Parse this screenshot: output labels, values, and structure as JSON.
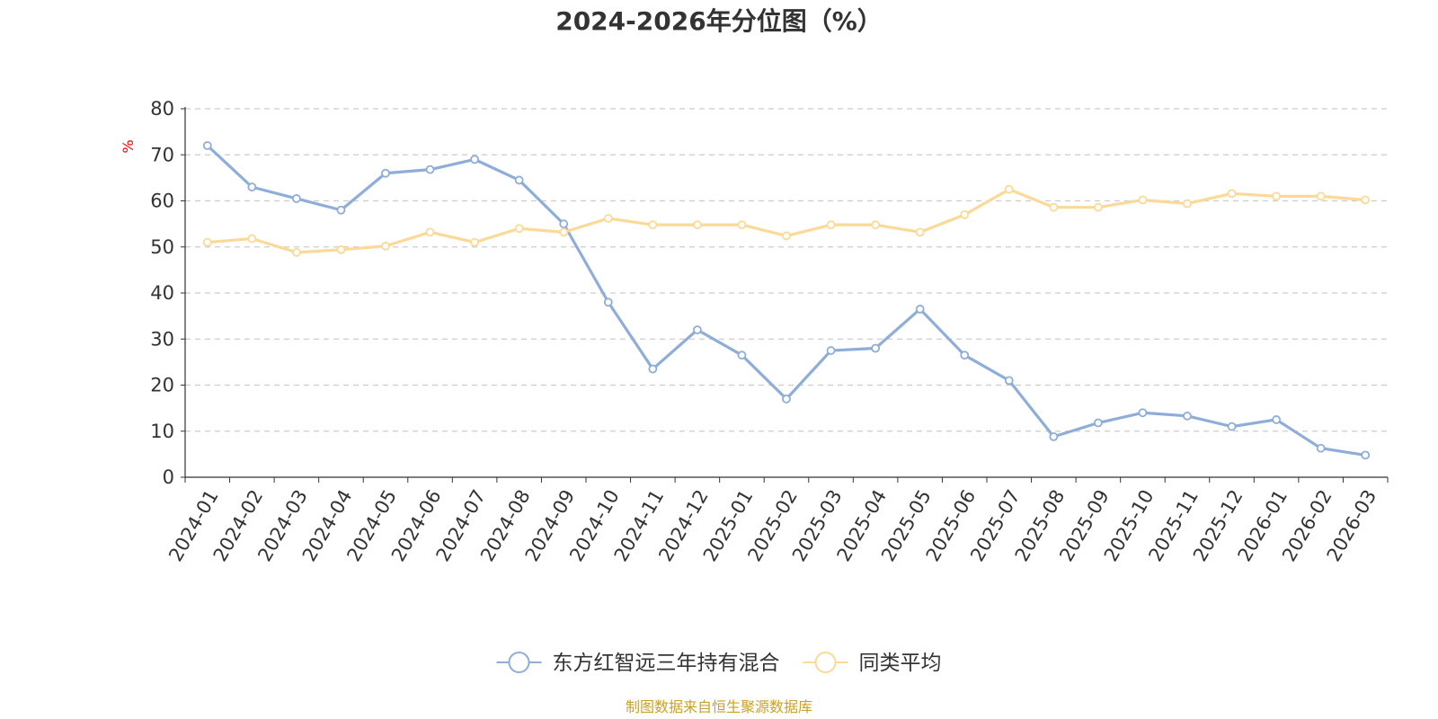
{
  "chart_data": {
    "type": "line",
    "title": "2024-2026年分位图（%）",
    "ylabel": "%",
    "ylim": [
      0,
      80
    ],
    "yticks": [
      0,
      10,
      20,
      30,
      40,
      50,
      60,
      70,
      80
    ],
    "grid": true,
    "legend_position": "bottom",
    "categories": [
      "2024-01",
      "2024-02",
      "2024-03",
      "2024-04",
      "2024-05",
      "2024-06",
      "2024-07",
      "2024-08",
      "2024-09",
      "2024-10",
      "2024-11",
      "2024-12",
      "2025-01",
      "2025-02",
      "2025-03",
      "2025-04",
      "2025-05",
      "2025-06",
      "2025-07",
      "2025-08",
      "2025-09",
      "2025-10",
      "2025-11",
      "2025-12",
      "2026-01",
      "2026-02",
      "2026-03"
    ],
    "series": [
      {
        "name": "东方红智远三年持有混合",
        "color": "#8EADD9",
        "values": [
          72,
          63,
          60.5,
          58,
          66,
          66.8,
          69,
          64.5,
          55,
          38,
          23.5,
          32,
          26.5,
          17,
          27.5,
          28,
          36.5,
          26.5,
          21,
          8.8,
          11.8,
          14,
          13.3,
          11,
          12.5,
          6.3,
          4.8
        ]
      },
      {
        "name": "同类平均",
        "color": "#FCD997",
        "values": [
          51,
          51.8,
          48.8,
          49.4,
          50.2,
          53.2,
          51,
          54,
          53.2,
          56.2,
          54.8,
          54.8,
          54.8,
          52.4,
          54.8,
          54.8,
          53.2,
          57,
          62.5,
          58.6,
          58.6,
          60.2,
          59.4,
          61.6,
          61,
          61,
          60.2
        ]
      }
    ]
  },
  "source_note": "制图数据来自恒生聚源数据库",
  "colors": {
    "axis": "#333333",
    "grid": "#cccccc",
    "ylabel": "#ff0000",
    "source_note": "#c9a227"
  }
}
